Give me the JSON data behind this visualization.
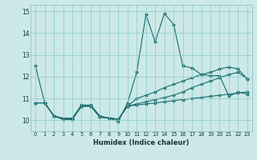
{
  "xlabel": "Humidex (Indice chaleur)",
  "background_color": "#cce8e8",
  "line_color": "#1a6b6b",
  "grid_color": "#88cccc",
  "xlim": [
    -0.5,
    23.5
  ],
  "ylim": [
    9.5,
    15.3
  ],
  "xticks": [
    0,
    1,
    2,
    3,
    4,
    5,
    6,
    7,
    8,
    9,
    10,
    11,
    12,
    13,
    14,
    15,
    16,
    17,
    18,
    19,
    20,
    21,
    22,
    23
  ],
  "yticks": [
    10,
    11,
    12,
    13,
    14,
    15
  ],
  "lines": [
    [
      12.5,
      10.8,
      10.2,
      10.1,
      10.1,
      10.7,
      10.7,
      10.2,
      10.1,
      9.95,
      10.8,
      12.2,
      14.85,
      13.6,
      14.9,
      14.4,
      12.5,
      12.4,
      12.1,
      12.05,
      12.05,
      11.1,
      11.3,
      11.2
    ],
    [
      10.8,
      10.8,
      10.2,
      10.05,
      10.05,
      10.65,
      10.65,
      10.15,
      10.1,
      10.05,
      10.65,
      10.75,
      10.85,
      10.95,
      11.05,
      11.15,
      11.3,
      11.5,
      11.65,
      11.8,
      11.95,
      12.1,
      12.2,
      11.9
    ],
    [
      10.8,
      10.8,
      10.2,
      10.05,
      10.05,
      10.65,
      10.65,
      10.15,
      10.1,
      10.05,
      10.65,
      11.0,
      11.15,
      11.3,
      11.5,
      11.65,
      11.8,
      11.95,
      12.1,
      12.2,
      12.35,
      12.45,
      12.35,
      11.9
    ],
    [
      10.8,
      10.8,
      10.2,
      10.05,
      10.05,
      10.65,
      10.65,
      10.15,
      10.1,
      10.05,
      10.65,
      10.7,
      10.75,
      10.8,
      10.85,
      10.9,
      10.95,
      11.0,
      11.05,
      11.1,
      11.15,
      11.2,
      11.25,
      11.3
    ]
  ]
}
